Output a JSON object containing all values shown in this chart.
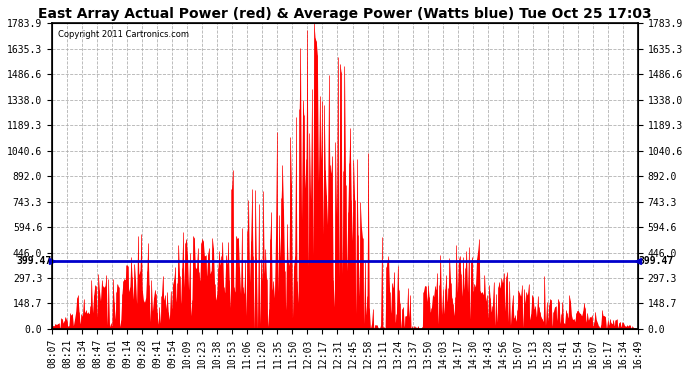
{
  "title": "East Array Actual Power (red) & Average Power (Watts blue) Tue Oct 25 17:03",
  "copyright": "Copyright 2011 Cartronics.com",
  "avg_power": 399.47,
  "y_max": 1783.9,
  "y_ticks": [
    0.0,
    148.7,
    297.3,
    446.0,
    594.6,
    743.3,
    892.0,
    1040.6,
    1189.3,
    1338.0,
    1486.6,
    1635.3,
    1783.9
  ],
  "x_labels": [
    "08:07",
    "08:21",
    "08:34",
    "08:47",
    "09:01",
    "09:14",
    "09:28",
    "09:41",
    "09:54",
    "10:09",
    "10:23",
    "10:38",
    "10:53",
    "11:06",
    "11:20",
    "11:35",
    "11:50",
    "12:03",
    "12:17",
    "12:31",
    "12:45",
    "12:58",
    "13:11",
    "13:24",
    "13:37",
    "13:50",
    "14:03",
    "14:17",
    "14:30",
    "14:43",
    "14:56",
    "15:07",
    "15:13",
    "15:28",
    "15:41",
    "15:54",
    "16:07",
    "16:17",
    "16:34",
    "16:49"
  ],
  "bar_color": "#ff0000",
  "avg_line_color": "#0000cc",
  "background_color": "#ffffff",
  "grid_color": "#aaaaaa",
  "title_fontsize": 10,
  "tick_fontsize": 7
}
